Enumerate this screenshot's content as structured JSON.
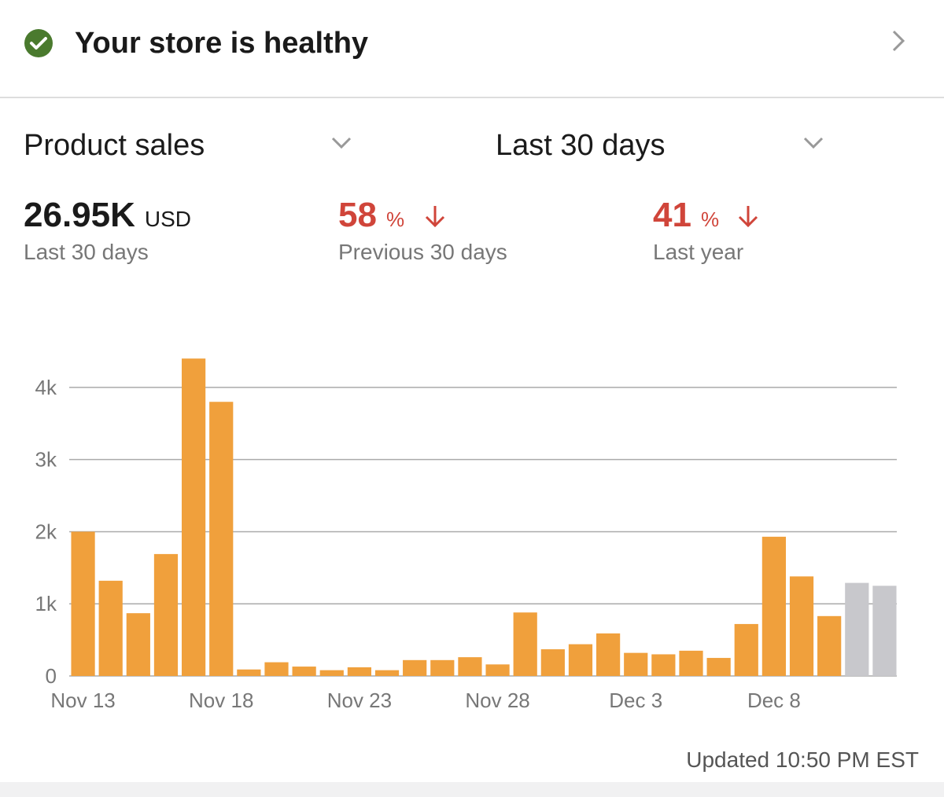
{
  "header": {
    "title": "Your store is healthy"
  },
  "controls": {
    "metric": "Product sales",
    "period": "Last 30 days"
  },
  "metrics": [
    {
      "value": "26.95K",
      "unit": "USD",
      "label": "Last 30 days"
    },
    {
      "value": "58",
      "unit": "%",
      "label": "Previous 30 days"
    },
    {
      "value": "41",
      "unit": "%",
      "label": "Last year"
    }
  ],
  "chart_data": {
    "type": "bar",
    "categories": [
      "Nov 13",
      null,
      null,
      null,
      null,
      "Nov 18",
      null,
      null,
      null,
      null,
      "Nov 23",
      null,
      null,
      null,
      null,
      "Nov 28",
      null,
      null,
      null,
      null,
      "Dec 3",
      null,
      null,
      null,
      null,
      "Dec 8",
      null,
      null,
      null,
      null
    ],
    "values": [
      2000,
      1320,
      870,
      1690,
      4400,
      3800,
      90,
      190,
      130,
      80,
      120,
      80,
      220,
      220,
      260,
      160,
      880,
      370,
      440,
      590,
      320,
      300,
      350,
      250,
      720,
      1930,
      1380,
      830,
      1290,
      1250
    ],
    "colors": [
      "#f0a03c",
      "#f0a03c",
      "#f0a03c",
      "#f0a03c",
      "#f0a03c",
      "#f0a03c",
      "#f0a03c",
      "#f0a03c",
      "#f0a03c",
      "#f0a03c",
      "#f0a03c",
      "#f0a03c",
      "#f0a03c",
      "#f0a03c",
      "#f0a03c",
      "#f0a03c",
      "#f0a03c",
      "#f0a03c",
      "#f0a03c",
      "#f0a03c",
      "#f0a03c",
      "#f0a03c",
      "#f0a03c",
      "#f0a03c",
      "#f0a03c",
      "#f0a03c",
      "#f0a03c",
      "#f0a03c",
      "#c8c8cc",
      "#c8c8cc"
    ],
    "ylim": [
      0,
      4500
    ],
    "yticks": [
      0,
      {
        "value": 1000,
        "label": "1k"
      },
      {
        "value": 2000,
        "label": "2k"
      },
      {
        "value": 3000,
        "label": "3k"
      },
      {
        "value": 4000,
        "label": "4k"
      }
    ],
    "grid": true
  },
  "footer": {
    "updated": "Updated 10:50 PM EST"
  }
}
